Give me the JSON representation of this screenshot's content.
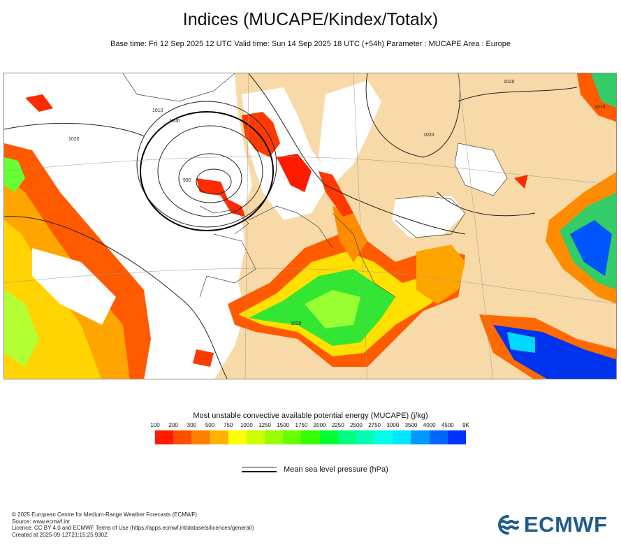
{
  "header": {
    "title": "Indices (MUCAPE/Kindex/Totalx)",
    "subtitle": "Base time: Fri 12 Sep 2025 12 UTC Valid time: Sun 14 Sep 2025 18 UTC (+54h) Parameter : MUCAPE Area : Europe"
  },
  "map": {
    "area": "Europe",
    "isobar_labels": [
      "1020",
      "1010",
      "1000",
      "990",
      "1020",
      "1020",
      "1010",
      "1020"
    ],
    "colors": {
      "land": "#f8d9a8",
      "sea_low": "#ffffff",
      "isobar": "#000000"
    }
  },
  "legend": {
    "title": "Most unstable convective available potential energy (MUCAPE) (j/kg)",
    "ticks": [
      "100",
      "200",
      "300",
      "500",
      "750",
      "1000",
      "1250",
      "1500",
      "1750",
      "2000",
      "2250",
      "2500",
      "2750",
      "3000",
      "3500",
      "4000",
      "4500",
      "9K"
    ],
    "colors": [
      "#ff1a00",
      "#ff4d00",
      "#ff8000",
      "#ffb300",
      "#ffff00",
      "#ccff00",
      "#99ff00",
      "#66ff00",
      "#33ff00",
      "#00ff33",
      "#00ff80",
      "#00ffb3",
      "#00ffe6",
      "#00e6ff",
      "#0099ff",
      "#0066ff",
      "#0033ff"
    ],
    "pressure_label": "Mean sea level pressure (hPa)"
  },
  "footer": {
    "line1": "© 2025 European Centre for Medium-Range Weather Forecasts (ECMWF)",
    "line2": "Source: www.ecmwf.int",
    "line3": "Licence: CC BY 4.0 and ECMWF Terms of Use (https://apps.ecmwf.int/datasets/licences/general/)",
    "line4": "Created at 2025-09-12T21:15:25.930Z"
  },
  "logo": {
    "text": "ECMWF",
    "color": "#1e5d8c"
  }
}
